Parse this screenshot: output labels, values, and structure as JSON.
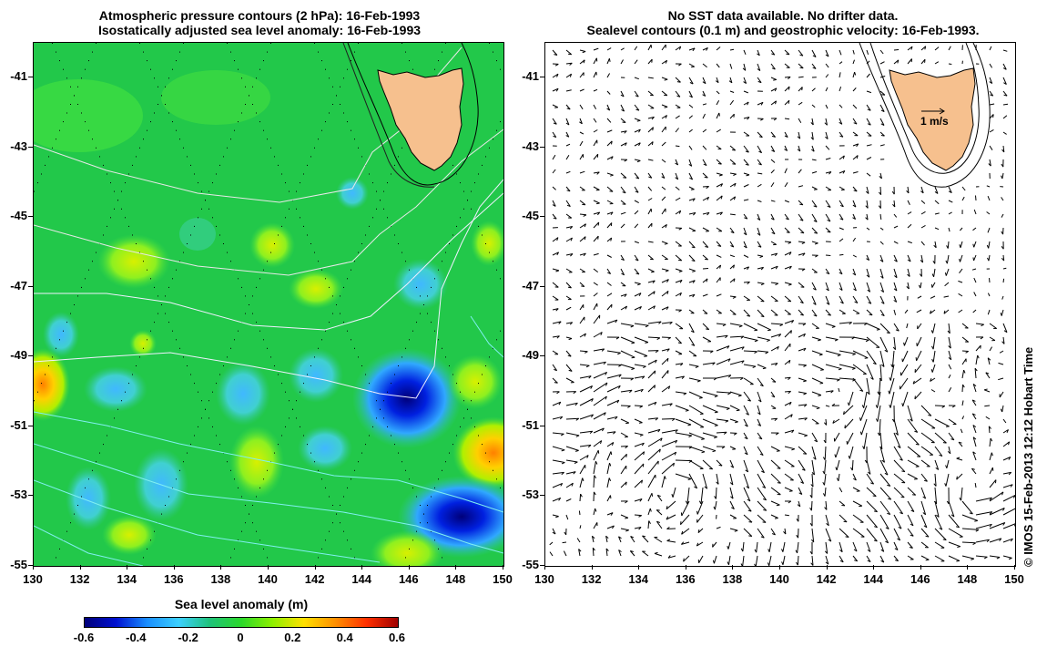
{
  "left_panel": {
    "title_line1": "Atmospheric pressure contours (2 hPa): 16-Feb-1993",
    "title_line2": "Isostatically adjusted sea level anomaly: 16-Feb-1993"
  },
  "right_panel": {
    "title_line1": "No SST data available.  No drifter data.",
    "title_line2": "Sealevel contours (0.1 m) and geostrophic velocity: 16-Feb-1993.",
    "scale_label": "1 m/s"
  },
  "axes": {
    "x_ticks": [
      "130",
      "132",
      "134",
      "136",
      "138",
      "140",
      "142",
      "144",
      "146",
      "148",
      "150"
    ],
    "y_ticks": [
      "-41",
      "-43",
      "-45",
      "-47",
      "-49",
      "-51",
      "-53",
      "-55"
    ],
    "lon_range": [
      130,
      150
    ],
    "lat_range": [
      -40,
      -55
    ]
  },
  "colorbar": {
    "title": "Sea level anomaly (m)",
    "ticks": [
      "-0.6",
      "-0.4",
      "-0.2",
      "0",
      "0.2",
      "0.4",
      "0.6"
    ],
    "colors": [
      "#00007a",
      "#0010d0",
      "#1a8fff",
      "#3cd0ff",
      "#1fc27a",
      "#2bd82b",
      "#8ef000",
      "#ffe000",
      "#ff9000",
      "#ff3000",
      "#a00000"
    ]
  },
  "land_color": "#f6c08e",
  "ocean_color": "#22c84a",
  "copyright": "© IMOS 15-Feb-2013 12:12 Hobart Time"
}
